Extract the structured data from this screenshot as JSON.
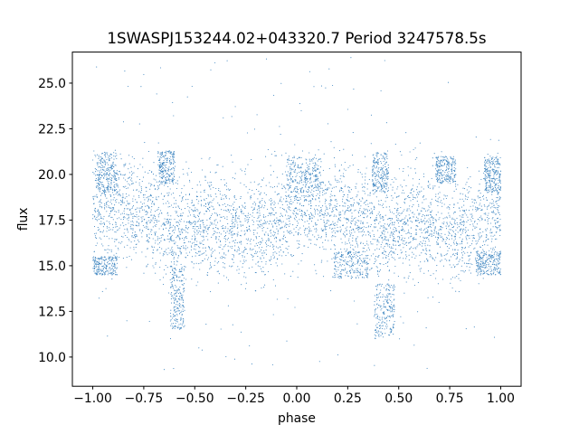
{
  "chart_data": {
    "type": "scatter",
    "title": "1SWASPJ153244.02+043320.7 Period 3247578.5s",
    "xlabel": "phase",
    "ylabel": "flux",
    "xlim": [
      -1.1,
      1.1
    ],
    "ylim": [
      8.4,
      26.7
    ],
    "x_ticks": [
      -1.0,
      -0.75,
      -0.5,
      -0.25,
      0.0,
      0.25,
      0.5,
      0.75,
      1.0
    ],
    "x_tick_labels": [
      "−1.00",
      "−0.75",
      "−0.50",
      "−0.25",
      "0.00",
      "0.25",
      "0.50",
      "0.75",
      "1.00"
    ],
    "y_ticks": [
      10.0,
      12.5,
      15.0,
      17.5,
      20.0,
      22.5,
      25.0
    ],
    "y_tick_labels": [
      "10.0",
      "12.5",
      "15.0",
      "17.5",
      "20.0",
      "22.5",
      "25.0"
    ],
    "grid": false,
    "legend": "none",
    "marker_color": "#3d85c0",
    "series": [
      {
        "phase_profile": {
          "x": [
            -1.0,
            -0.9,
            -0.8,
            -0.7,
            -0.6,
            -0.5,
            -0.4,
            -0.3,
            -0.2,
            -0.1,
            0.0,
            0.1,
            0.2,
            0.3,
            0.4,
            0.5,
            0.6,
            0.7,
            0.8,
            0.9,
            1.0
          ],
          "y": [
            18.2,
            18.3,
            18.0,
            17.6,
            17.0,
            17.2,
            17.5,
            17.1,
            16.8,
            17.4,
            18.2,
            18.3,
            18.0,
            17.7,
            17.0,
            17.2,
            17.5,
            17.1,
            16.8,
            17.4,
            18.2
          ]
        },
        "scatter_sd": 1.4,
        "range": [
          9.3,
          26.4
        ],
        "clusters": [
          {
            "x": [
              -1.0,
              -0.88
            ],
            "y": [
              14.5,
              15.5
            ]
          },
          {
            "x": [
              -0.98,
              -0.88
            ],
            "y": [
              19.0,
              21.2
            ]
          },
          {
            "x": [
              -0.68,
              -0.6
            ],
            "y": [
              19.5,
              21.3
            ]
          },
          {
            "x": [
              -0.62,
              -0.55
            ],
            "y": [
              11.5,
              15.0
            ]
          },
          {
            "x": [
              -0.05,
              0.12
            ],
            "y": [
              19.0,
              21.0
            ]
          },
          {
            "x": [
              0.18,
              0.35
            ],
            "y": [
              14.3,
              15.8
            ]
          },
          {
            "x": [
              0.37,
              0.45
            ],
            "y": [
              19.0,
              21.2
            ]
          },
          {
            "x": [
              0.38,
              0.48
            ],
            "y": [
              11.0,
              14.0
            ]
          },
          {
            "x": [
              0.68,
              0.78
            ],
            "y": [
              19.5,
              21.0
            ]
          },
          {
            "x": [
              0.88,
              1.0
            ],
            "y": [
              14.5,
              15.8
            ]
          },
          {
            "x": [
              0.92,
              1.0
            ],
            "y": [
              19.0,
              21.0
            ]
          }
        ]
      }
    ]
  }
}
